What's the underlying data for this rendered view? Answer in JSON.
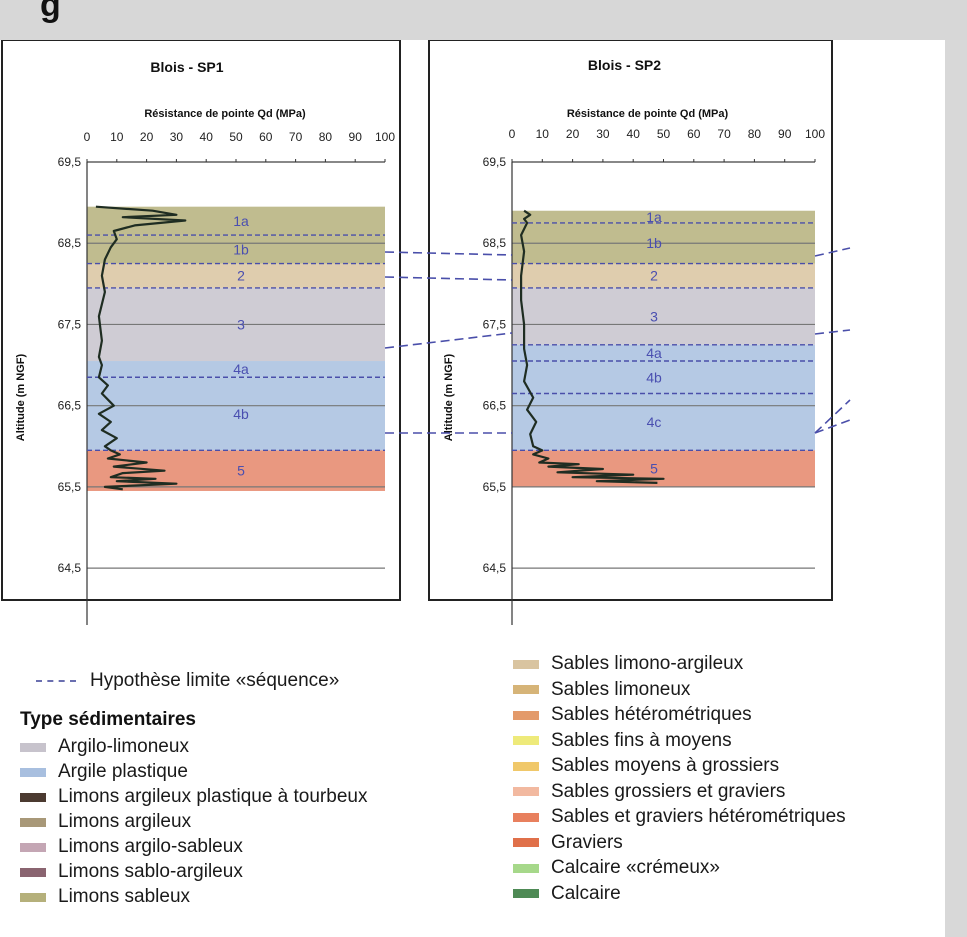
{
  "header": {
    "title": "g"
  },
  "colors": {
    "chart_border": "#222222",
    "gridline": "#777777",
    "sequence_dash": "#4a4faa",
    "qd_line": "#1f2d22",
    "label_color": "#4a4fb0"
  },
  "chart_data": [
    {
      "type": "line",
      "title": "Blois - SP1",
      "xlabel": "Résistance de pointe Qd (MPa)",
      "ylabel": "Altitude (m NGF)",
      "xlim": [
        0,
        100
      ],
      "ylim": [
        63.8,
        69.5
      ],
      "x_ticks": [
        "0",
        "10",
        "20",
        "30",
        "40",
        "50",
        "60",
        "70",
        "80",
        "90",
        "100"
      ],
      "y_ticks": [
        "69,5",
        "68,5",
        "67,5",
        "66,5",
        "65,5",
        "64,5"
      ],
      "layers": [
        {
          "label": "1a",
          "top": 68.95,
          "bottom": 68.6,
          "color": "#b5b07b"
        },
        {
          "label": "1b",
          "top": 68.6,
          "bottom": 68.25,
          "color": "#b5b07b"
        },
        {
          "label": "2",
          "top": 68.25,
          "bottom": 67.95,
          "color": "#d9c4a0"
        },
        {
          "label": "3",
          "top": 67.95,
          "bottom": 67.05,
          "color": "#c7c3cc"
        },
        {
          "label": "4a",
          "top": 67.05,
          "bottom": 66.85,
          "color": "#a8bfdf"
        },
        {
          "label": "4b",
          "top": 66.85,
          "bottom": 65.95,
          "color": "#a8bfdf"
        },
        {
          "label": "5",
          "top": 65.95,
          "bottom": 65.45,
          "color": "#e5866a"
        }
      ],
      "sequence_limits": [
        68.6,
        68.25,
        67.95,
        66.85,
        65.95
      ],
      "series": [
        {
          "x": [
            3,
            22,
            30,
            12,
            33,
            16,
            9,
            10,
            8,
            6,
            5,
            6,
            4,
            5,
            4,
            5,
            4,
            7,
            5,
            9,
            4,
            8,
            5,
            10,
            6,
            8,
            11,
            7,
            20,
            9,
            26,
            12,
            8,
            23,
            10,
            30,
            6,
            12
          ],
          "y": [
            68.95,
            68.9,
            68.85,
            68.82,
            68.78,
            68.72,
            68.65,
            68.55,
            68.45,
            68.3,
            68.1,
            67.9,
            67.6,
            67.3,
            67.1,
            67.0,
            66.85,
            66.75,
            66.65,
            66.5,
            66.4,
            66.3,
            66.2,
            66.1,
            66.0,
            65.95,
            65.9,
            65.85,
            65.8,
            65.75,
            65.7,
            65.67,
            65.62,
            65.6,
            65.57,
            65.54,
            65.5,
            65.47
          ]
        }
      ]
    },
    {
      "type": "line",
      "title": "Blois - SP2",
      "xlabel": "Résistance de pointe Qd (MPa)",
      "ylabel": "Altitude (m NGF)",
      "xlim": [
        0,
        100
      ],
      "ylim": [
        63.8,
        69.5
      ],
      "x_ticks": [
        "0",
        "10",
        "20",
        "30",
        "40",
        "50",
        "60",
        "70",
        "80",
        "90",
        "100"
      ],
      "y_ticks": [
        "69,5",
        "68,5",
        "67,5",
        "66,5",
        "65,5",
        "64,5"
      ],
      "layers": [
        {
          "label": "1a",
          "top": 68.9,
          "bottom": 68.75,
          "color": "#b5b07b"
        },
        {
          "label": "1b",
          "top": 68.75,
          "bottom": 68.25,
          "color": "#b5b07b"
        },
        {
          "label": "2",
          "top": 68.25,
          "bottom": 67.95,
          "color": "#d9c4a0"
        },
        {
          "label": "3",
          "top": 67.95,
          "bottom": 67.25,
          "color": "#c7c3cc"
        },
        {
          "label": "4a",
          "top": 67.25,
          "bottom": 67.05,
          "color": "#a8bfdf"
        },
        {
          "label": "4b",
          "top": 67.05,
          "bottom": 66.65,
          "color": "#a8bfdf"
        },
        {
          "label": "4c",
          "top": 66.65,
          "bottom": 65.95,
          "color": "#a8bfdf"
        },
        {
          "label": "5",
          "top": 65.95,
          "bottom": 65.5,
          "color": "#e5866a"
        }
      ],
      "sequence_limits": [
        68.75,
        68.25,
        67.95,
        67.25,
        67.05,
        66.65,
        65.95
      ],
      "series": [
        {
          "x": [
            4,
            6,
            4,
            5,
            3,
            4,
            3,
            3,
            4,
            4,
            5,
            4,
            7,
            5,
            8,
            6,
            7,
            10,
            7,
            12,
            9,
            22,
            12,
            30,
            15,
            40,
            20,
            50,
            28,
            48
          ],
          "y": [
            68.9,
            68.85,
            68.8,
            68.75,
            68.6,
            68.4,
            68.1,
            67.8,
            67.5,
            67.2,
            67.0,
            66.8,
            66.6,
            66.45,
            66.3,
            66.15,
            66.0,
            65.95,
            65.9,
            65.85,
            65.8,
            65.78,
            65.75,
            65.72,
            65.68,
            65.65,
            65.62,
            65.6,
            65.57,
            65.55
          ]
        }
      ]
    }
  ],
  "legend": {
    "dash_label": "Hypothèse limite «séquence»",
    "heading": "Type sédimentaires",
    "left_items": [
      {
        "label": "Argilo-limoneux",
        "color": "#c7c3cc"
      },
      {
        "label": "Argile plastique",
        "color": "#a8bfdf"
      },
      {
        "label": "Limons argileux plastique à tourbeux",
        "color": "#4b3a30"
      },
      {
        "label": "Limons argileux",
        "color": "#a89878"
      },
      {
        "label": "Limons argilo-sableux",
        "color": "#c4a6b4"
      },
      {
        "label": "Limons sablo-argileux",
        "color": "#8a6470"
      },
      {
        "label": "Limons sableux",
        "color": "#b5b07b"
      }
    ],
    "right_items": [
      {
        "label": "Sables limono-argileux",
        "color": "#d9c4a0"
      },
      {
        "label": "Sables limoneux",
        "color": "#d6b478"
      },
      {
        "label": "Sables hétérométriques",
        "color": "#e39a6a"
      },
      {
        "label": "Sables fins à moyens",
        "color": "#eeea7a"
      },
      {
        "label": "Sables moyens à grossiers",
        "color": "#f0c86a"
      },
      {
        "label": "Sables grossiers et graviers",
        "color": "#f2b9a0"
      },
      {
        "label": "Sables et graviers hétérométriques",
        "color": "#e8805e"
      },
      {
        "label": "Graviers",
        "color": "#e0704a"
      },
      {
        "label": "Calcaire «crémeux»",
        "color": "#a6d88a"
      },
      {
        "label": "Calcaire",
        "color": "#4e8a55"
      }
    ]
  }
}
